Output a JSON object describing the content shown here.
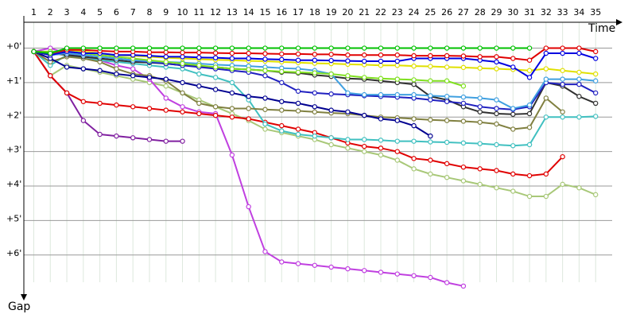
{
  "chart_data": {
    "type": "line",
    "x_label": "Time",
    "y_label": "Gap",
    "xlim": [
      0.4,
      36
    ],
    "ylim": [
      -0.75,
      7.25
    ],
    "y_inverted": true,
    "grid": true,
    "xticks": [
      1,
      2,
      3,
      4,
      5,
      6,
      7,
      8,
      9,
      10,
      11,
      12,
      13,
      14,
      15,
      16,
      17,
      18,
      19,
      20,
      21,
      22,
      23,
      24,
      25,
      26,
      27,
      28,
      29,
      30,
      31,
      32,
      33,
      34,
      35
    ],
    "yticks": [
      {
        "value": 0,
        "label": "+0'"
      },
      {
        "value": 1,
        "label": "+1'"
      },
      {
        "value": 2,
        "label": "+2'"
      },
      {
        "value": 3,
        "label": "+3'"
      },
      {
        "value": 4,
        "label": "+4'"
      },
      {
        "value": 5,
        "label": "+5'"
      },
      {
        "value": 6,
        "label": "+6'"
      }
    ],
    "x": [
      1,
      2,
      3,
      4,
      5,
      6,
      7,
      8,
      9,
      10,
      11,
      12,
      13,
      14,
      15,
      16,
      17,
      18,
      19,
      20,
      21,
      22,
      23,
      24,
      25,
      26,
      27,
      28,
      29,
      30,
      31,
      32,
      33,
      34,
      35
    ],
    "series": [
      {
        "color": "#a8c878",
        "values": [
          0.1,
          0.8,
          0.5,
          0.6,
          0.7,
          0.8,
          0.9,
          1.0,
          1.1,
          1.3,
          1.5,
          1.7,
          1.9,
          2.1,
          2.35,
          2.45,
          2.55,
          2.65,
          2.8,
          2.9,
          3.0,
          3.1,
          3.25,
          3.5,
          3.65,
          3.75,
          3.85,
          3.95,
          4.05,
          4.15,
          4.3,
          4.3,
          3.95,
          4.05,
          4.25
        ]
      },
      {
        "color": "#c040e0",
        "values": [
          0.1,
          0,
          0.15,
          0.25,
          0.35,
          0.5,
          0.6,
          0.9,
          1.45,
          1.7,
          1.85,
          1.9,
          3.1,
          4.6,
          5.9,
          6.2,
          6.25,
          6.3,
          6.35,
          6.4,
          6.45,
          6.5,
          6.55,
          6.6,
          6.65,
          6.8,
          6.9,
          null,
          null,
          null,
          null,
          null,
          null,
          null,
          null
        ]
      },
      {
        "color": "#8020a0",
        "values": [
          0.1,
          0.8,
          1.3,
          2.1,
          2.5,
          2.55,
          2.6,
          2.65,
          2.7,
          2.7,
          null,
          null,
          null,
          null,
          null,
          null,
          null,
          null,
          null,
          null,
          null,
          null,
          null,
          null,
          null,
          null,
          null,
          null,
          null,
          null,
          null,
          null,
          null,
          null,
          null
        ]
      },
      {
        "color": "#e00000",
        "values": [
          0.1,
          0.8,
          1.3,
          1.55,
          1.6,
          1.65,
          1.7,
          1.75,
          1.8,
          1.85,
          1.9,
          1.95,
          2.0,
          2.05,
          2.15,
          2.25,
          2.35,
          2.45,
          2.6,
          2.75,
          2.85,
          2.9,
          3.0,
          3.2,
          3.25,
          3.35,
          3.45,
          3.5,
          3.55,
          3.65,
          3.7,
          3.65,
          3.15,
          null,
          null
        ]
      },
      {
        "color": "#40c0c0",
        "values": [
          0.1,
          0.5,
          0.2,
          0.3,
          0.35,
          0.4,
          0.45,
          0.5,
          0.55,
          0.6,
          0.75,
          0.85,
          1.0,
          1.5,
          2.2,
          2.4,
          2.5,
          2.55,
          2.6,
          2.65,
          2.65,
          2.67,
          2.7,
          2.7,
          2.72,
          2.73,
          2.75,
          2.77,
          2.8,
          2.83,
          2.8,
          2.0,
          2.0,
          2.0,
          1.98
        ]
      },
      {
        "color": "#808040",
        "values": [
          0.1,
          0.4,
          0.25,
          0.3,
          0.4,
          0.6,
          0.75,
          0.8,
          0.95,
          1.3,
          1.6,
          1.7,
          1.75,
          1.75,
          1.78,
          1.8,
          1.82,
          1.85,
          1.88,
          1.9,
          1.95,
          2.0,
          2.02,
          2.05,
          2.08,
          2.1,
          2.12,
          2.15,
          2.2,
          2.35,
          2.3,
          1.45,
          1.85,
          null,
          null
        ]
      },
      {
        "color": "#000090",
        "values": [
          0.1,
          0.3,
          0.55,
          0.6,
          0.65,
          0.75,
          0.8,
          0.85,
          0.9,
          1.0,
          1.1,
          1.2,
          1.3,
          1.4,
          1.45,
          1.55,
          1.6,
          1.7,
          1.8,
          1.85,
          1.95,
          2.05,
          2.1,
          2.25,
          2.55,
          null,
          null,
          null,
          null,
          null,
          null,
          null,
          null,
          null,
          null
        ]
      },
      {
        "color": "#303030",
        "values": [
          0.1,
          0.15,
          0.2,
          0.25,
          0.3,
          0.35,
          0.4,
          0.42,
          0.45,
          0.5,
          0.52,
          0.55,
          0.6,
          0.62,
          0.65,
          0.7,
          0.72,
          0.78,
          0.82,
          0.88,
          0.9,
          0.95,
          1.0,
          1.05,
          1.4,
          1.5,
          1.7,
          1.85,
          1.9,
          1.92,
          1.9,
          1.0,
          1.1,
          1.4,
          1.6
        ]
      },
      {
        "color": "#2020c0",
        "values": [
          0.1,
          0.2,
          0.15,
          0.2,
          0.25,
          0.3,
          0.35,
          0.4,
          0.45,
          0.5,
          0.55,
          0.6,
          0.65,
          0.7,
          0.8,
          1.0,
          1.25,
          1.3,
          1.33,
          1.35,
          1.38,
          1.4,
          1.42,
          1.45,
          1.5,
          1.55,
          1.6,
          1.7,
          1.75,
          1.78,
          1.7,
          1.0,
          1.05,
          1.05,
          1.3
        ]
      },
      {
        "color": "#40a0e0",
        "values": [
          0.1,
          0.2,
          0.15,
          0.2,
          0.25,
          0.3,
          0.35,
          0.38,
          0.4,
          0.42,
          0.45,
          0.48,
          0.5,
          0.52,
          0.55,
          0.58,
          0.6,
          0.65,
          0.75,
          1.3,
          1.35,
          1.35,
          1.35,
          1.35,
          1.38,
          1.4,
          1.42,
          1.45,
          1.5,
          1.75,
          1.65,
          0.9,
          0.9,
          0.9,
          0.95
        ]
      },
      {
        "color": "#80e020",
        "values": [
          0.1,
          0.1,
          0.1,
          0.15,
          0.2,
          0.25,
          0.3,
          0.35,
          0.4,
          0.45,
          0.5,
          0.55,
          0.6,
          0.62,
          0.65,
          0.68,
          0.7,
          0.72,
          0.75,
          0.8,
          0.85,
          0.88,
          0.9,
          0.92,
          0.95,
          0.95,
          1.1,
          null,
          null,
          null,
          null,
          null,
          null,
          null,
          null
        ]
      },
      {
        "color": "#e0e000",
        "values": [
          0.1,
          0.2,
          0.05,
          0.1,
          0.15,
          0.2,
          0.22,
          0.25,
          0.28,
          0.3,
          0.32,
          0.34,
          0.35,
          0.37,
          0.38,
          0.4,
          0.42,
          0.44,
          0.45,
          0.47,
          0.48,
          0.5,
          0.5,
          0.52,
          0.53,
          0.55,
          0.56,
          0.58,
          0.6,
          0.62,
          0.65,
          0.6,
          0.65,
          0.7,
          0.75
        ]
      },
      {
        "color": "#0000e0",
        "values": [
          0.1,
          0.2,
          0.1,
          0.15,
          0.15,
          0.2,
          0.2,
          0.22,
          0.25,
          0.25,
          0.27,
          0.28,
          0.3,
          0.3,
          0.32,
          0.33,
          0.35,
          0.35,
          0.36,
          0.37,
          0.38,
          0.38,
          0.38,
          0.3,
          0.3,
          0.3,
          0.3,
          0.35,
          0.4,
          0.55,
          0.85,
          0.15,
          0.15,
          0.15,
          0.3
        ]
      },
      {
        "color": "#e00000",
        "values": [
          0.1,
          0.15,
          0.05,
          0.05,
          0.08,
          0.1,
          0.1,
          0.12,
          0.12,
          0.13,
          0.13,
          0.14,
          0.15,
          0.15,
          0.16,
          0.17,
          0.17,
          0.18,
          0.18,
          0.2,
          0.2,
          0.2,
          0.2,
          0.22,
          0.22,
          0.22,
          0.23,
          0.25,
          0.25,
          0.3,
          0.35,
          0,
          0,
          0,
          0.1
        ]
      },
      {
        "color": "#00c000",
        "values": [
          0.1,
          0.15,
          0,
          0,
          0,
          0,
          0,
          0,
          0,
          0,
          0,
          0,
          0,
          0,
          0,
          0,
          0,
          0,
          0,
          0,
          0,
          0,
          0,
          0,
          0,
          0,
          0,
          0,
          0,
          0,
          0,
          null,
          null,
          null,
          null
        ]
      }
    ]
  }
}
